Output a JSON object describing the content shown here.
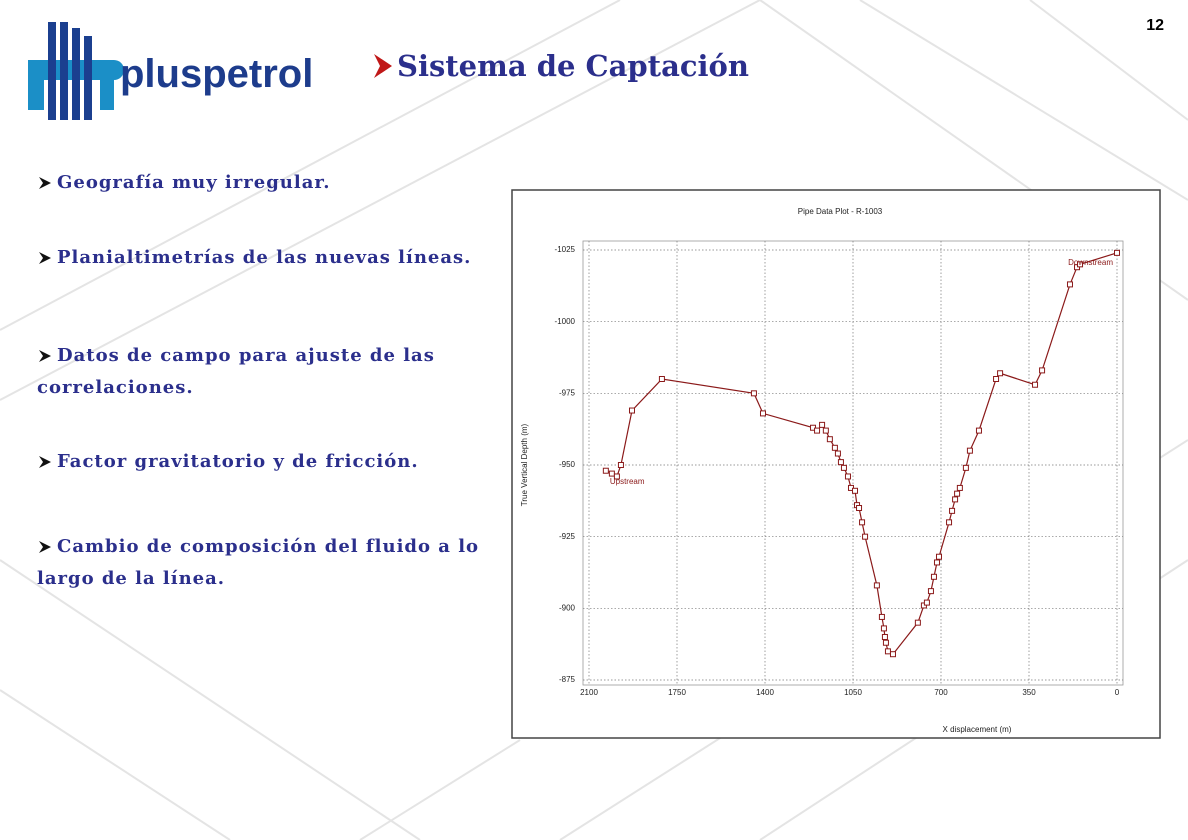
{
  "page_number": "12",
  "logo": {
    "text": "pluspetrol"
  },
  "title": "Sistema de Captación",
  "bullets": [
    "Geografía muy irregular.",
    "Planialtimetrías de las nuevas líneas.",
    "Datos de campo para ajuste de las correlaciones.",
    "Factor gravitatorio y de fricción.",
    "Cambio de composición del fluido a lo largo de la línea."
  ],
  "chart_data": {
    "type": "line",
    "title": "Pipe Data Plot - R-1003",
    "x_label": "X displacement  (m)",
    "y_label": "True Vertical Depth  (m)",
    "x": [
      2033,
      2009,
      1989,
      1973,
      1929,
      1810,
      1444,
      1408,
      1209,
      1193,
      1173,
      1158,
      1142,
      1122,
      1110,
      1098,
      1086,
      1070,
      1058,
      1042,
      1034,
      1026,
      1014,
      1002,
      955,
      935,
      927,
      923,
      919,
      911,
      891,
      792,
      768,
      756,
      740,
      728,
      716,
      708,
      668,
      656,
      644,
      636,
      625,
      601,
      585,
      549,
      481,
      465,
      326,
      298,
      187,
      159,
      147,
      0
    ],
    "series": [
      {
        "color": "#8b1a1a",
        "values": [
          -948,
          -947,
          -946,
          -950,
          -969,
          -980,
          -975,
          -968,
          -963,
          -962,
          -964,
          -962,
          -959,
          -956,
          -954,
          -951,
          -949,
          -946,
          -942,
          -941,
          -936,
          -935,
          -930,
          -925,
          -908,
          -897,
          -893,
          -890,
          -888,
          -885,
          -884,
          -895,
          -901,
          -902,
          -906,
          -911,
          -916,
          -918,
          -930,
          -934,
          -938,
          -940,
          -942,
          -949,
          -955,
          -962,
          -980,
          -982,
          -978,
          -983,
          -1013,
          -1019,
          -1020,
          -1024
        ]
      }
    ],
    "annotations": [
      {
        "text": "Upstream"
      },
      {
        "text": "Downstream"
      }
    ],
    "xlim": [
      2100,
      0
    ],
    "xticks": [
      2100,
      1750,
      1400,
      1050,
      700,
      350,
      0
    ],
    "ylim": [
      -875,
      -1025
    ],
    "yticks": [
      -875,
      -900,
      -925,
      -950,
      -975,
      -1000,
      -1025
    ],
    "grid": true
  }
}
